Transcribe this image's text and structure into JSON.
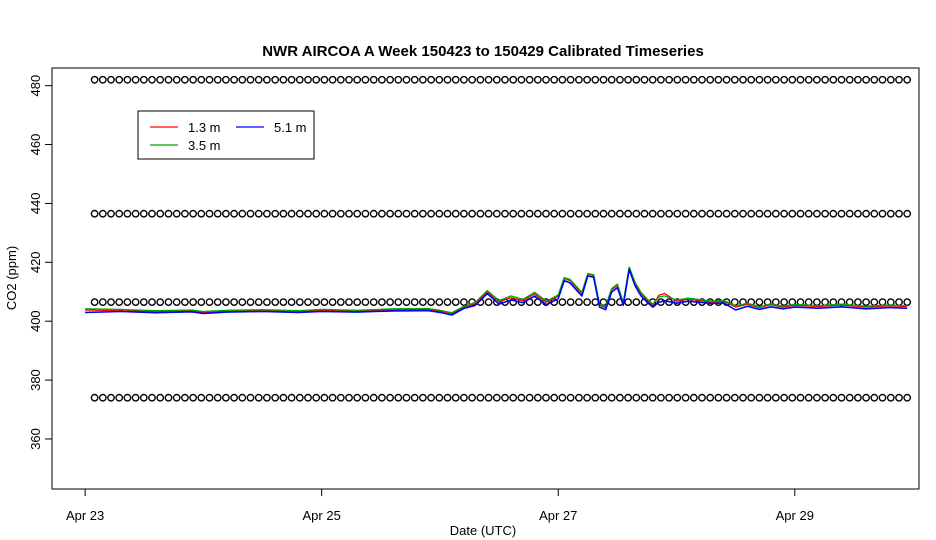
{
  "chart_data": {
    "type": "line",
    "title": "NWR AIRCOA A  Week 150423 to 150429  Calibrated Timeseries",
    "xlabel": "Date (UTC)",
    "ylabel": "CO2 (ppm)",
    "x_ticks": [
      {
        "day": 0,
        "label": "Apr 23"
      },
      {
        "day": 2,
        "label": "Apr 25"
      },
      {
        "day": 4,
        "label": "Apr 27"
      },
      {
        "day": 6,
        "label": "Apr 29"
      }
    ],
    "y_ticks": [
      360,
      380,
      400,
      420,
      440,
      460,
      480
    ],
    "xlim_days": [
      -0.28,
      7.05
    ],
    "ylim": [
      343,
      486
    ],
    "grid": false,
    "legend_position": "top-left",
    "series": [
      {
        "name": "1.3 m",
        "color": "#ff0000",
        "x": [
          0,
          0.3,
          0.6,
          0.9,
          1.0,
          1.2,
          1.5,
          1.8,
          2.0,
          2.3,
          2.6,
          2.9,
          3.0,
          3.1,
          3.2,
          3.3,
          3.4,
          3.5,
          3.6,
          3.7,
          3.8,
          3.9,
          4.0,
          4.05,
          4.1,
          4.2,
          4.25,
          4.3,
          4.35,
          4.4,
          4.45,
          4.5,
          4.55,
          4.6,
          4.65,
          4.7,
          4.75,
          4.8,
          4.85,
          4.9,
          5.0,
          5.1,
          5.2,
          5.3,
          5.4,
          5.5,
          5.6,
          5.7,
          5.8,
          5.9,
          6.0,
          6.2,
          6.4,
          6.6,
          6.8,
          6.95
        ],
        "y": [
          403.8,
          403.6,
          403.2,
          403.5,
          403.0,
          403.4,
          403.6,
          403.3,
          403.7,
          403.4,
          403.9,
          404.0,
          403.4,
          402.6,
          404.8,
          406.0,
          410.0,
          406.6,
          408.0,
          407.0,
          409.2,
          406.4,
          408.5,
          414.5,
          413.8,
          409.4,
          416.0,
          415.5,
          405.4,
          404.6,
          410.6,
          412.2,
          406.0,
          418.2,
          412.8,
          409.4,
          407.2,
          405.4,
          408.8,
          409.4,
          406.8,
          407.5,
          407.0,
          406.5,
          406.8,
          404.8,
          405.8,
          404.6,
          405.6,
          404.8,
          405.4,
          405.0,
          405.5,
          404.8,
          405.2,
          405.0
        ]
      },
      {
        "name": "3.5 m",
        "color": "#00aa00",
        "x": [
          0,
          0.3,
          0.6,
          0.9,
          1.0,
          1.2,
          1.5,
          1.8,
          2.0,
          2.3,
          2.6,
          2.9,
          3.0,
          3.1,
          3.2,
          3.3,
          3.4,
          3.5,
          3.6,
          3.7,
          3.8,
          3.9,
          4.0,
          4.05,
          4.1,
          4.2,
          4.25,
          4.3,
          4.35,
          4.4,
          4.45,
          4.5,
          4.55,
          4.6,
          4.65,
          4.7,
          4.75,
          4.8,
          4.85,
          4.9,
          5.0,
          5.1,
          5.2,
          5.3,
          5.4,
          5.5,
          5.6,
          5.7,
          5.8,
          5.9,
          6.0,
          6.2,
          6.4,
          6.6,
          6.8,
          6.95
        ],
        "y": [
          404.2,
          404.0,
          403.6,
          403.8,
          403.3,
          403.7,
          403.9,
          403.6,
          404.0,
          403.7,
          404.2,
          404.3,
          403.7,
          402.9,
          405.0,
          406.4,
          410.4,
          407.0,
          408.6,
          407.4,
          409.8,
          406.8,
          408.9,
          414.8,
          414.2,
          409.8,
          416.2,
          415.8,
          405.8,
          405.0,
          411.0,
          412.6,
          406.4,
          418.4,
          413.2,
          409.8,
          407.6,
          405.8,
          408.2,
          408.6,
          407.2,
          407.8,
          407.3,
          406.8,
          407.1,
          405.2,
          406.1,
          404.9,
          405.9,
          405.1,
          405.7,
          405.3,
          405.8,
          405.1,
          405.5,
          405.3
        ]
      },
      {
        "name": "5.1 m",
        "color": "#0000ff",
        "x": [
          0,
          0.3,
          0.6,
          0.9,
          1.0,
          1.2,
          1.5,
          1.8,
          2.0,
          2.3,
          2.6,
          2.9,
          3.0,
          3.1,
          3.2,
          3.3,
          3.4,
          3.5,
          3.6,
          3.7,
          3.8,
          3.9,
          4.0,
          4.05,
          4.1,
          4.2,
          4.25,
          4.3,
          4.35,
          4.4,
          4.45,
          4.5,
          4.55,
          4.6,
          4.65,
          4.7,
          4.75,
          4.8,
          4.85,
          4.9,
          5.0,
          5.1,
          5.2,
          5.3,
          5.4,
          5.5,
          5.6,
          5.7,
          5.8,
          5.9,
          6.0,
          6.2,
          6.4,
          6.6,
          6.8,
          6.95
        ],
        "y": [
          403.0,
          403.3,
          402.9,
          403.2,
          402.6,
          403.1,
          403.3,
          403.0,
          403.3,
          403.1,
          403.5,
          403.6,
          403.0,
          402.1,
          404.3,
          405.4,
          409.4,
          405.8,
          407.2,
          406.3,
          408.5,
          405.6,
          407.6,
          413.8,
          413.0,
          408.6,
          415.4,
          414.9,
          404.8,
          403.9,
          409.8,
          411.4,
          405.4,
          417.6,
          412.0,
          408.6,
          406.5,
          404.8,
          406.4,
          407.0,
          406.1,
          406.8,
          406.4,
          406.0,
          406.2,
          403.8,
          405.1,
          404.0,
          404.9,
          404.2,
          404.8,
          404.4,
          404.9,
          404.2,
          404.6,
          404.4
        ]
      }
    ],
    "reference_markers": {
      "symbol": "open-circle",
      "x_start": 0.08,
      "x_end": 6.95,
      "count": 100,
      "y_levels": [
        482,
        436.5,
        406.5,
        374
      ]
    }
  }
}
